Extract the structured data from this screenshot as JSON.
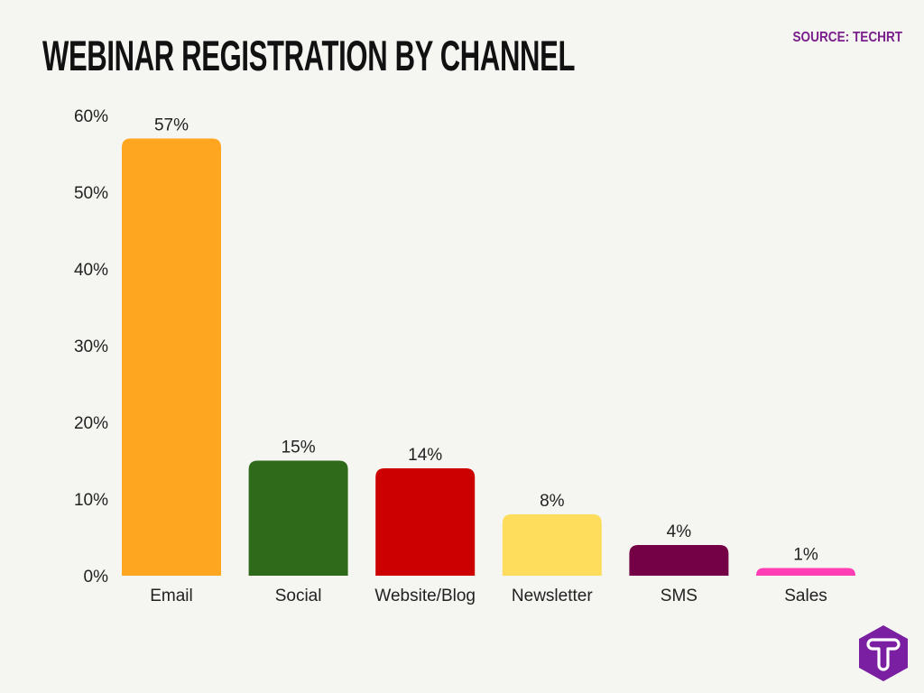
{
  "title": "WEBINAR REGISTRATION BY CHANNEL",
  "source": "SOURCE: TECHRT",
  "logo": {
    "icon": "techrt-hexagon-t-logo",
    "color": "#7b1fa2"
  },
  "chart_data": {
    "type": "bar",
    "title": "WEBINAR REGISTRATION BY CHANNEL",
    "categories": [
      "Email",
      "Social",
      "Website/Blog",
      "Newsletter",
      "SMS",
      "Sales"
    ],
    "values": [
      57,
      15,
      14,
      8,
      4,
      1
    ],
    "data_labels": [
      "57%",
      "15%",
      "14%",
      "8%",
      "4%",
      "1%"
    ],
    "colors": [
      "#ffa620",
      "#2e6a1a",
      "#cc0000",
      "#ffdd5c",
      "#740046",
      "#ff3db4"
    ],
    "ylim": [
      0,
      60
    ],
    "yticks": [
      0,
      10,
      20,
      30,
      40,
      50,
      60
    ],
    "ytick_labels": [
      "0%",
      "10%",
      "20%",
      "30%",
      "40%",
      "50%",
      "60%"
    ],
    "xlabel": "",
    "ylabel": "",
    "grid": false,
    "legend": "none"
  }
}
